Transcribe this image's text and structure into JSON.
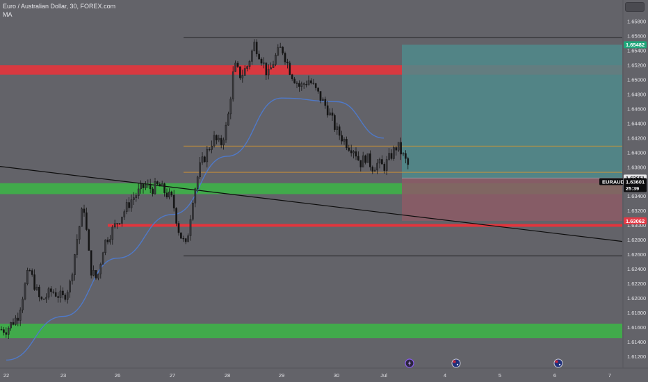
{
  "header": {
    "symbol_title": "Euro / Australian Dollar, 30, FOREX.com",
    "indicator_label": "MA"
  },
  "colors": {
    "background": "#636369",
    "candle": "#141414",
    "ma_line": "#4f79c9",
    "resistance_zone": "#e2353d",
    "support_zone": "#3fae4a",
    "target_zone": "#4f8a8c",
    "stop_zone": "#8c5a66",
    "level_orange": "#d8962f",
    "trendline": "#0d0d0d",
    "target_tag": "#1ea67a",
    "stop_tag": "#e23a46"
  },
  "price_tags": {
    "target": "1.65482",
    "entry": "1.63651",
    "symbol": "EURAUD",
    "last_price": "1.63601",
    "countdown": "25:39",
    "stop": "1.63062"
  },
  "event_icons": [
    "flash-icon",
    "australia-flag-icon",
    "australia-flag-icon"
  ],
  "chart_data": {
    "type": "candlestick",
    "symbol": "EURAUD",
    "timeframe": "30",
    "x_ticks": [
      "22",
      "23",
      "26",
      "27",
      "28",
      "29",
      "30",
      "Jul",
      "4",
      "5",
      "6",
      "7"
    ],
    "y_ticks": [
      "1.65800",
      "1.65600",
      "1.65400",
      "1.65200",
      "1.65000",
      "1.64800",
      "1.64600",
      "1.64400",
      "1.64200",
      "1.64000",
      "1.63800",
      "1.63600",
      "1.63400",
      "1.63200",
      "1.63000",
      "1.62800",
      "1.62600",
      "1.62400",
      "1.62200",
      "1.62000",
      "1.61800",
      "1.61600",
      "1.61400",
      "1.61200",
      "1.61000",
      "1.60800"
    ],
    "ylim": [
      1.6055,
      1.6593
    ],
    "price_path": [
      [
        "22",
        1.6157
      ],
      [
        "22",
        1.6175
      ],
      [
        "22",
        1.624
      ],
      [
        "22",
        1.6195
      ],
      [
        "22",
        1.621
      ],
      [
        "23",
        1.62
      ],
      [
        "23",
        1.622
      ],
      [
        "23",
        1.628
      ],
      [
        "23",
        1.633
      ],
      [
        "23",
        1.624
      ],
      [
        "23",
        1.6225
      ],
      [
        "23",
        1.6275
      ],
      [
        "23",
        1.629
      ],
      [
        "26",
        1.6305
      ],
      [
        "26",
        1.632
      ],
      [
        "26",
        1.6335
      ],
      [
        "26",
        1.6345
      ],
      [
        "26",
        1.6355
      ],
      [
        "26",
        1.635
      ],
      [
        "26",
        1.6355
      ],
      [
        "26",
        1.6345
      ],
      [
        "27",
        1.6335
      ],
      [
        "27",
        1.629
      ],
      [
        "27",
        1.627
      ],
      [
        "27",
        1.634
      ],
      [
        "27",
        1.638
      ],
      [
        "27",
        1.64
      ],
      [
        "27",
        1.642
      ],
      [
        "27",
        1.641
      ],
      [
        "28",
        1.644
      ],
      [
        "28",
        1.652
      ],
      [
        "28",
        1.6505
      ],
      [
        "28",
        1.652
      ],
      [
        "28",
        1.655
      ],
      [
        "28",
        1.653
      ],
      [
        "28",
        1.6505
      ],
      [
        "28",
        1.653
      ],
      [
        "29",
        1.6545
      ],
      [
        "29",
        1.651
      ],
      [
        "29",
        1.649
      ],
      [
        "29",
        1.65
      ],
      [
        "29",
        1.648
      ],
      [
        "29",
        1.646
      ],
      [
        "30",
        1.643
      ],
      [
        "30",
        1.642
      ],
      [
        "30",
        1.641
      ],
      [
        "30",
        1.6405
      ],
      [
        "30",
        1.6385
      ],
      [
        "30",
        1.6395
      ],
      [
        "30",
        1.638
      ],
      [
        "30",
        1.6385
      ],
      [
        "Jul",
        1.638
      ],
      [
        "Jul",
        1.641
      ],
      [
        "Jul",
        1.6375
      ],
      [
        "Jul",
        1.636
      ]
    ],
    "moving_average_path": [
      [
        "22",
        1.6115
      ],
      [
        "23",
        1.6175
      ],
      [
        "26",
        1.6255
      ],
      [
        "27",
        1.6315
      ],
      [
        "28",
        1.6395
      ],
      [
        "29",
        1.6475
      ],
      [
        "30",
        1.647
      ],
      [
        "Jul",
        1.642
      ]
    ],
    "resistance_zones": [
      [
        1.6507,
        1.652
      ]
    ],
    "support_zones": [
      [
        1.6343,
        1.6358
      ],
      [
        1.6145,
        1.6165
      ]
    ],
    "horizontal_lines": {
      "black": [
        1.6558,
        1.6258
      ],
      "orange": [
        1.6409,
        1.6373
      ],
      "red": [
        1.63
      ]
    },
    "trendline": {
      "start": [
        "22",
        1.6381
      ],
      "end": [
        "7",
        1.6278
      ]
    },
    "position": {
      "side": "long",
      "entry": 1.63651,
      "target": 1.65482,
      "stop": 1.63062
    },
    "last_price": 1.63601,
    "grid": false,
    "legend": "none"
  }
}
